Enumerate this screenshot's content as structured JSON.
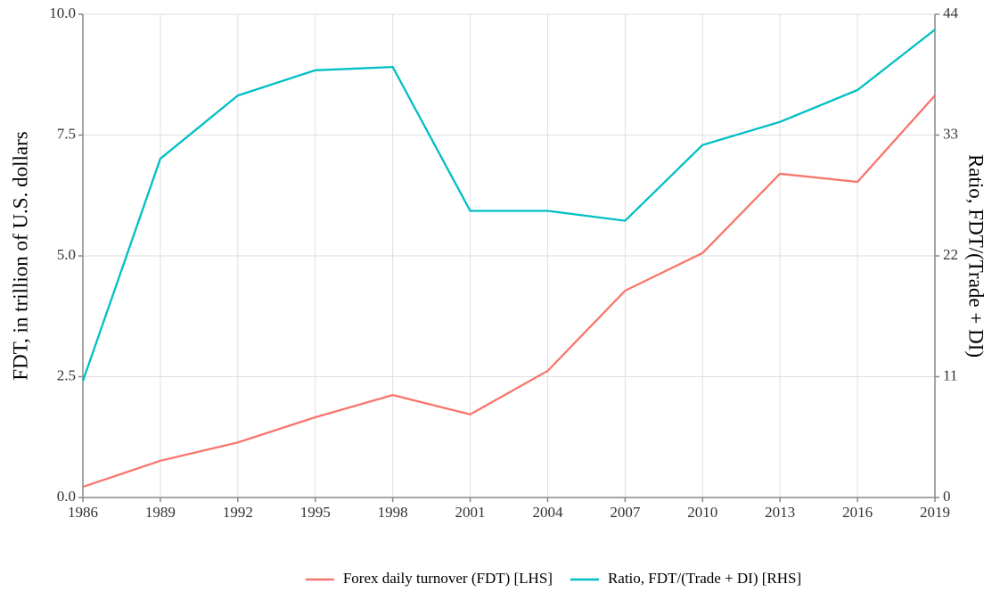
{
  "chart_data": {
    "type": "line",
    "y_label": "FDT, in trillion of U.S. dollars",
    "y2_label": "Ratio, FDT/(Trade + DI)",
    "x": [
      1986,
      1989,
      1992,
      1995,
      1998,
      2001,
      2004,
      2007,
      2010,
      2013,
      2016,
      2019
    ],
    "xlim": [
      1986,
      2019
    ],
    "xticks": [
      1986,
      1989,
      1992,
      1995,
      1998,
      2001,
      2004,
      2007,
      2010,
      2013,
      2016,
      2019
    ],
    "ylim": [
      0,
      10
    ],
    "yticks": [
      {
        "value": 0,
        "label": "0.0"
      },
      2.5,
      {
        "value": 5,
        "label": "5.0"
      },
      7.5,
      {
        "value": 10,
        "label": "10.0"
      }
    ],
    "y2lim": [
      0,
      44
    ],
    "y2ticks": [
      0,
      11,
      22,
      33,
      44
    ],
    "grid": true,
    "legend": "bottom",
    "series": [
      {
        "name": "Forex daily turnover (FDT) [LHS]",
        "color": "#f8766d",
        "values": [
          0.22,
          0.76,
          1.14,
          1.66,
          2.12,
          1.72,
          2.62,
          4.28,
          5.06,
          6.7,
          6.53,
          8.32
        ]
      },
      {
        "name": "Ratio, FDT/(Trade + DI) [RHS]",
        "color": "#00bfc4",
        "axis": "y2",
        "values": [
          10.6,
          30.85,
          36.6,
          38.9,
          39.2,
          26.1,
          26.1,
          25.2,
          32.1,
          34.2,
          37.1,
          42.6
        ]
      }
    ]
  }
}
